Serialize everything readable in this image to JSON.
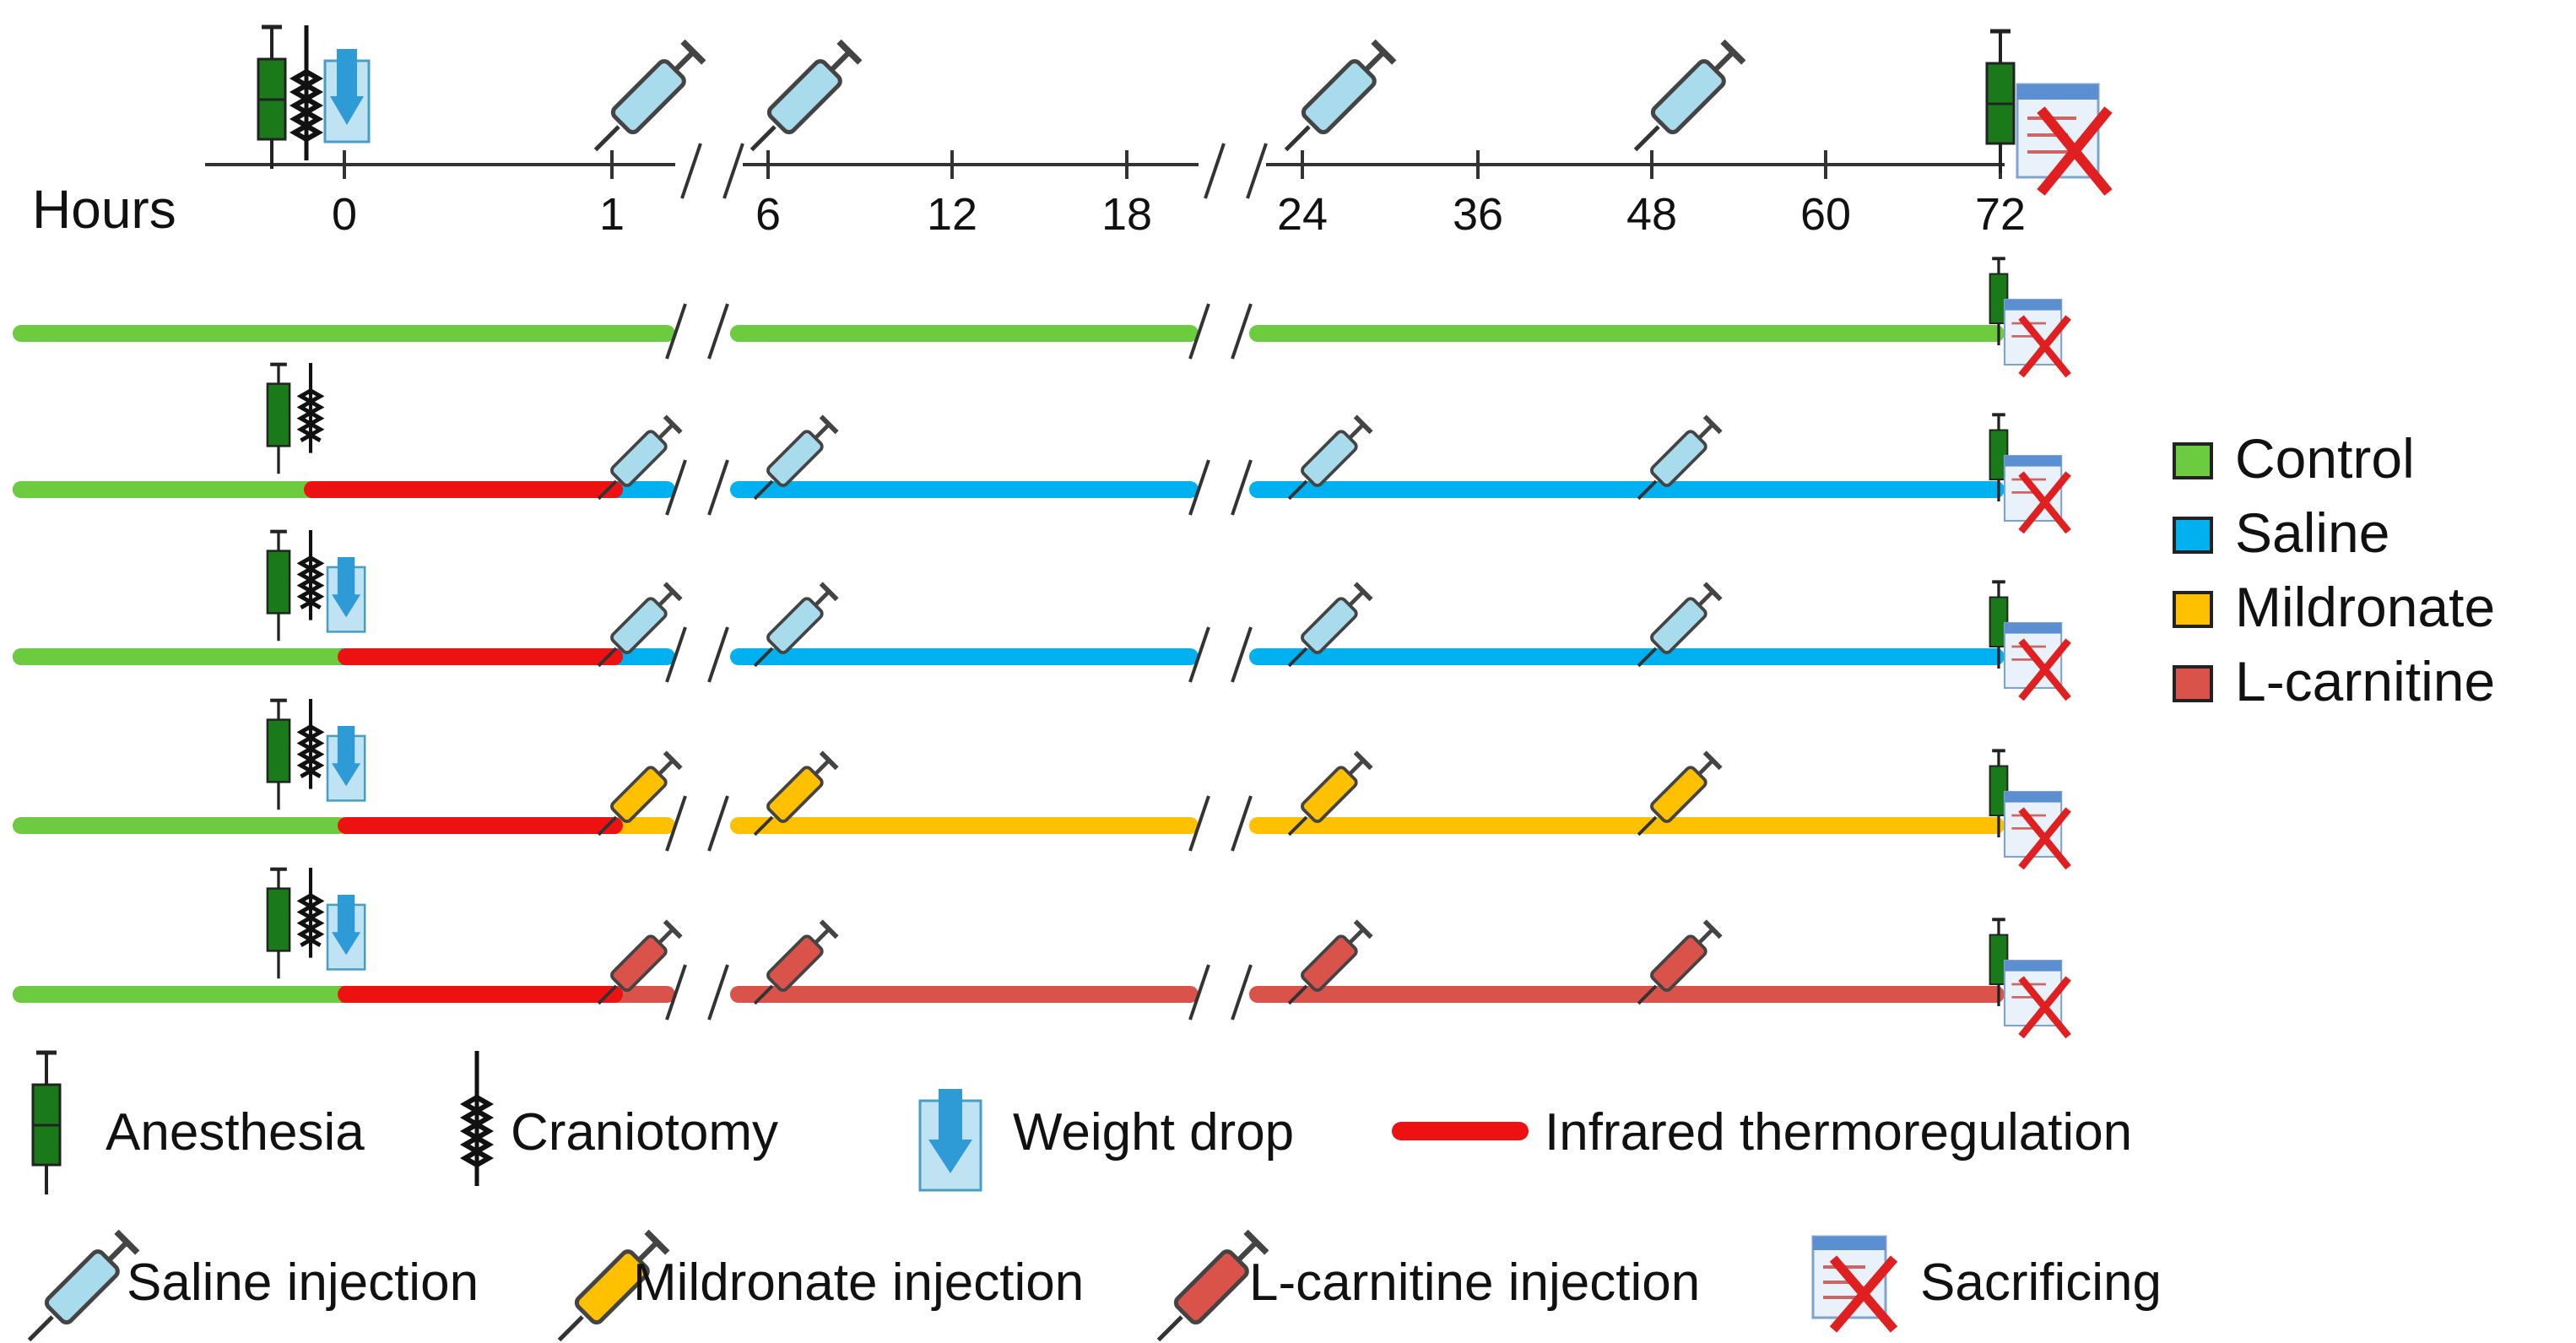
{
  "colors": {
    "control": "#6ccb3e",
    "saline": "#00b0ef",
    "mildronate": "#ffc000",
    "lcarnitine": "#d9534a",
    "infrared": "#ee1111",
    "axis": "#333333",
    "anesthesia": "#1a7a1a",
    "syringe_saline": "#a8dcec"
  },
  "timeline": {
    "axis_label": "Hours",
    "ticks": [
      "0",
      "1",
      "6",
      "12",
      "18",
      "24",
      "36",
      "48",
      "60",
      "72"
    ],
    "top_events": [
      {
        "icon": "anesthesia-icon",
        "at": "pre"
      },
      {
        "icon": "craniotomy-icon",
        "at": "pre"
      },
      {
        "icon": "weight-drop-icon",
        "at": "0"
      },
      {
        "icon": "saline-injection-icon",
        "at": "1"
      },
      {
        "icon": "saline-injection-icon",
        "at": "6"
      },
      {
        "icon": "saline-injection-icon",
        "at": "24"
      },
      {
        "icon": "saline-injection-icon",
        "at": "48"
      },
      {
        "icon": "anesthesia-icon",
        "at": "72"
      },
      {
        "icon": "sacrificing-icon",
        "at": "72"
      }
    ]
  },
  "groups": [
    {
      "id": "control",
      "color_key": "control",
      "craniotomy": false,
      "weight_drop": false,
      "infrared": false,
      "injection": null
    },
    {
      "id": "saline-sham",
      "color_key": "saline",
      "craniotomy": true,
      "weight_drop": false,
      "infrared": true,
      "injection": "saline"
    },
    {
      "id": "saline",
      "color_key": "saline",
      "craniotomy": true,
      "weight_drop": true,
      "infrared": true,
      "injection": "saline"
    },
    {
      "id": "mildronate",
      "color_key": "mildronate",
      "craniotomy": true,
      "weight_drop": true,
      "infrared": true,
      "injection": "mildronate"
    },
    {
      "id": "lcarnitine",
      "color_key": "lcarnitine",
      "craniotomy": true,
      "weight_drop": true,
      "infrared": true,
      "injection": "lcarnitine"
    }
  ],
  "legend_groups": [
    {
      "label": "Control",
      "color_key": "control"
    },
    {
      "label": "Saline",
      "color_key": "saline"
    },
    {
      "label": "Mildronate",
      "color_key": "mildronate"
    },
    {
      "label": "L-carnitine",
      "color_key": "lcarnitine"
    }
  ],
  "legend_icons": {
    "anesthesia": "Anesthesia",
    "craniotomy": "Craniotomy",
    "weight_drop": "Weight drop",
    "infrared": "Infrared thermoregulation",
    "saline_injection": "Saline injection",
    "mildronate_injection": "Mildronate injection",
    "lcarnitine_injection": "L-carnitine injection",
    "sacrificing": "Sacrificing"
  }
}
